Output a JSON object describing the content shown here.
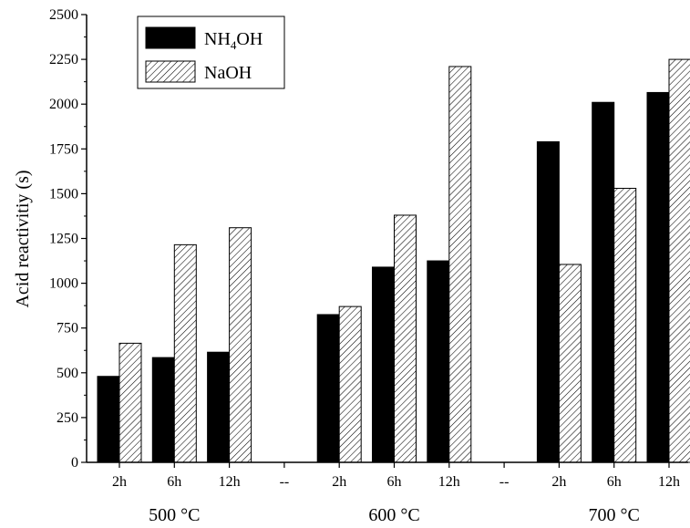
{
  "chart_data": {
    "type": "bar",
    "title": "",
    "xlabel": "",
    "ylabel": "Acid reactivitiy (s)",
    "ylim": [
      0,
      2500
    ],
    "yticks": [
      0,
      250,
      500,
      750,
      1000,
      1250,
      1500,
      1750,
      2000,
      2250,
      2500
    ],
    "categories": [
      "2h",
      "6h",
      "12h",
      "--",
      "2h",
      "6h",
      "12h",
      "--",
      "2h",
      "6h",
      "12h"
    ],
    "groups": [
      {
        "label": "500 °C"
      },
      {
        "label": "600 °C"
      },
      {
        "label": "700 °C"
      }
    ],
    "series": [
      {
        "name": "NH4OH",
        "name_main": "NH",
        "name_sub": "4",
        "name_tail": "OH",
        "color": "#000000",
        "values": [
          480,
          585,
          615,
          null,
          825,
          1090,
          1125,
          null,
          1790,
          2010,
          2065
        ]
      },
      {
        "name": "NaOH",
        "color": "#ffffff",
        "pattern": "hatch",
        "values": [
          665,
          1215,
          1310,
          null,
          870,
          1380,
          2210,
          null,
          1105,
          1530,
          2250
        ]
      }
    ],
    "legend_position": "top-left",
    "grid": false
  }
}
